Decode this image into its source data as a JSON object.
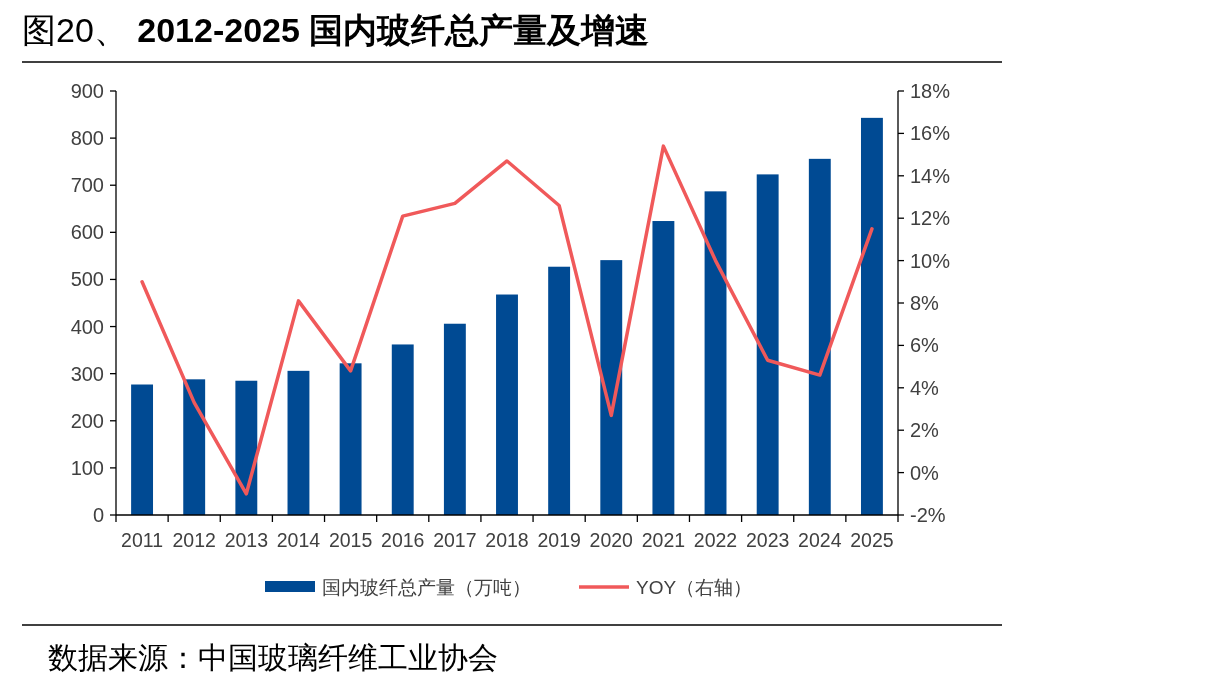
{
  "chart_data": {
    "type": "bar",
    "title": "图20、 **2012-2025 国内玻纤总产量及增速**",
    "categories": [
      "2011",
      "2012",
      "2013",
      "2014",
      "2015",
      "2016",
      "2017",
      "2018",
      "2019",
      "2020",
      "2021",
      "2022",
      "2023",
      "2024",
      "2025"
    ],
    "series": [
      {
        "name": "国内玻纤总产量（万吨）",
        "color": "#004a93",
        "values": [
          277,
          288,
          285,
          306,
          322,
          362,
          406,
          468,
          527,
          541,
          624,
          687,
          723,
          756,
          843
        ]
      },
      {
        "name": "YOY（右轴）",
        "type": "line",
        "axis": "y2",
        "color": "#f0595a",
        "values": [
          9.0,
          3.3,
          -1.0,
          8.1,
          4.8,
          12.1,
          12.7,
          14.7,
          12.6,
          2.7,
          15.4,
          10.0,
          5.3,
          4.6,
          11.5
        ]
      }
    ],
    "ylim": [
      0,
      900
    ],
    "yticks": [
      0,
      100,
      200,
      300,
      400,
      500,
      600,
      700,
      800,
      900
    ],
    "y2lim": [
      -2,
      18
    ],
    "y2ticks": [
      {
        "value": -2,
        "label": "-2%"
      },
      {
        "value": 0,
        "label": "0%"
      },
      {
        "value": 2,
        "label": "2%"
      },
      {
        "value": 4,
        "label": "4%"
      },
      {
        "value": 6,
        "label": "6%"
      },
      {
        "value": 8,
        "label": "8%"
      },
      {
        "value": 10,
        "label": "10%"
      },
      {
        "value": 12,
        "label": "12%"
      },
      {
        "value": 14,
        "label": "14%"
      },
      {
        "value": 16,
        "label": "16%"
      },
      {
        "value": 18,
        "label": "18%"
      }
    ],
    "legend": "bottom",
    "annotations": [
      "数据来源：中国玻璃纤维工业协会"
    ]
  }
}
